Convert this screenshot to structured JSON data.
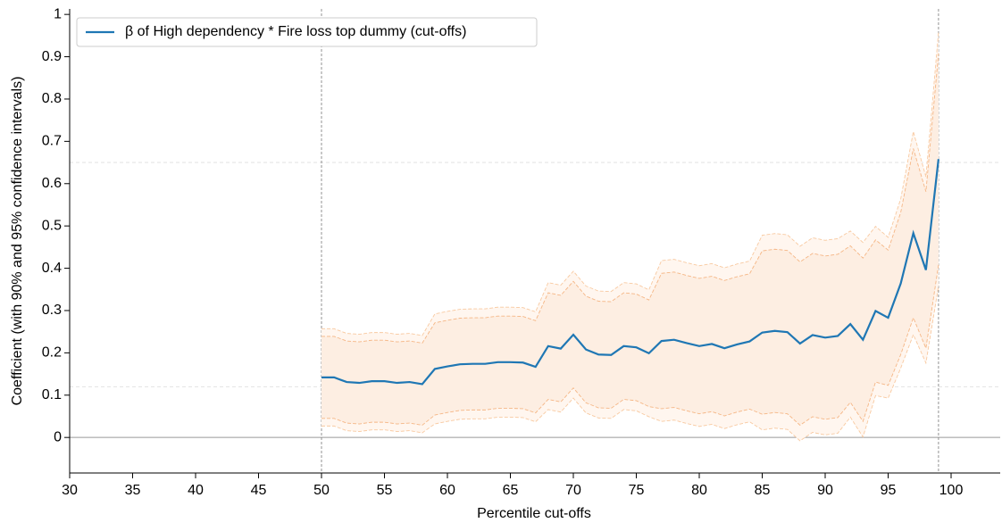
{
  "chart_data": {
    "type": "line",
    "xlabel": "Percentile cut-offs",
    "ylabel": "Coefficient (with 90% and 95% confidence intervals)",
    "x": [
      50,
      51,
      52,
      53,
      54,
      55,
      56,
      57,
      58,
      59,
      60,
      61,
      62,
      63,
      64,
      65,
      66,
      67,
      68,
      69,
      70,
      71,
      72,
      73,
      74,
      75,
      76,
      77,
      78,
      79,
      80,
      81,
      82,
      83,
      84,
      85,
      86,
      87,
      88,
      89,
      90,
      91,
      92,
      93,
      94,
      95,
      96,
      97,
      98,
      99
    ],
    "series": [
      {
        "name": "β of High dependency * Fire loss top dummy (cut-offs)",
        "color": "#1f77b4",
        "values": [
          0.142,
          0.142,
          0.131,
          0.129,
          0.133,
          0.133,
          0.129,
          0.131,
          0.126,
          0.162,
          0.168,
          0.173,
          0.174,
          0.174,
          0.178,
          0.178,
          0.177,
          0.167,
          0.216,
          0.21,
          0.243,
          0.208,
          0.196,
          0.195,
          0.216,
          0.213,
          0.199,
          0.228,
          0.231,
          0.223,
          0.216,
          0.221,
          0.211,
          0.22,
          0.227,
          0.248,
          0.252,
          0.249,
          0.222,
          0.242,
          0.236,
          0.24,
          0.268,
          0.231,
          0.299,
          0.283,
          0.364,
          0.483,
          0.396,
          0.658
        ]
      }
    ],
    "bands": [
      {
        "fill": "#fff6ef",
        "edge": "#f8c9a0",
        "upper": [
          0.257,
          0.257,
          0.246,
          0.244,
          0.248,
          0.248,
          0.244,
          0.246,
          0.241,
          0.292,
          0.298,
          0.303,
          0.304,
          0.304,
          0.308,
          0.308,
          0.307,
          0.297,
          0.366,
          0.36,
          0.393,
          0.358,
          0.346,
          0.345,
          0.366,
          0.363,
          0.349,
          0.418,
          0.421,
          0.413,
          0.406,
          0.411,
          0.401,
          0.41,
          0.417,
          0.478,
          0.482,
          0.479,
          0.452,
          0.472,
          0.466,
          0.47,
          0.488,
          0.461,
          0.499,
          0.473,
          0.564,
          0.723,
          0.616,
          0.958
        ],
        "lower": [
          0.027,
          0.027,
          0.016,
          0.014,
          0.018,
          0.018,
          0.014,
          0.016,
          0.011,
          0.032,
          0.038,
          0.043,
          0.044,
          0.044,
          0.048,
          0.048,
          0.047,
          0.037,
          0.066,
          0.06,
          0.093,
          0.058,
          0.046,
          0.045,
          0.066,
          0.063,
          0.049,
          0.038,
          0.041,
          0.033,
          0.026,
          0.031,
          0.021,
          0.03,
          0.037,
          0.018,
          0.022,
          0.019,
          -0.008,
          0.012,
          0.006,
          0.01,
          0.048,
          0.001,
          0.099,
          0.093,
          0.164,
          0.243,
          0.176,
          0.358
        ]
      },
      {
        "fill": "#fdeee2",
        "edge": "#f5b685",
        "upper": [
          0.239,
          0.239,
          0.228,
          0.226,
          0.23,
          0.23,
          0.226,
          0.228,
          0.223,
          0.271,
          0.277,
          0.282,
          0.283,
          0.283,
          0.287,
          0.287,
          0.286,
          0.276,
          0.342,
          0.336,
          0.369,
          0.334,
          0.322,
          0.321,
          0.342,
          0.339,
          0.325,
          0.388,
          0.391,
          0.383,
          0.376,
          0.381,
          0.371,
          0.38,
          0.387,
          0.441,
          0.445,
          0.442,
          0.415,
          0.435,
          0.429,
          0.433,
          0.453,
          0.424,
          0.467,
          0.443,
          0.532,
          0.683,
          0.581,
          0.908
        ],
        "lower": [
          0.045,
          0.045,
          0.034,
          0.032,
          0.036,
          0.036,
          0.032,
          0.034,
          0.029,
          0.053,
          0.059,
          0.064,
          0.065,
          0.065,
          0.069,
          0.069,
          0.068,
          0.058,
          0.09,
          0.084,
          0.117,
          0.082,
          0.07,
          0.069,
          0.09,
          0.087,
          0.073,
          0.068,
          0.071,
          0.063,
          0.056,
          0.061,
          0.051,
          0.06,
          0.067,
          0.055,
          0.059,
          0.056,
          0.029,
          0.049,
          0.043,
          0.047,
          0.083,
          0.038,
          0.131,
          0.123,
          0.196,
          0.283,
          0.211,
          0.408
        ]
      }
    ],
    "vlines": [
      50,
      99
    ],
    "hlines": [
      0.65,
      0.12
    ],
    "zero_line": 0,
    "xlim": [
      30,
      103.9
    ],
    "ylim": [
      -0.084,
      1.013
    ],
    "xticks": [
      30,
      35,
      40,
      45,
      50,
      55,
      60,
      65,
      70,
      75,
      80,
      85,
      90,
      95,
      100
    ],
    "yticks": [
      0,
      0.1,
      0.2,
      0.3,
      0.4,
      0.5,
      0.6,
      0.7,
      0.8,
      0.9,
      1
    ],
    "legend": "upper left"
  }
}
